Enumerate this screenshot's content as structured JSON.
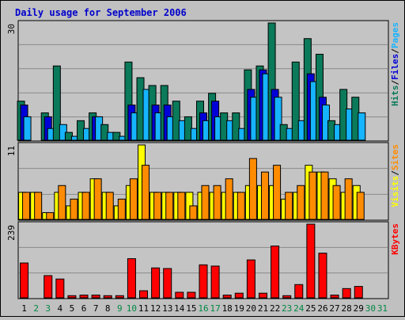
{
  "title": "Daily usage for September 2006",
  "colors": {
    "background": "#c0c0c0",
    "panel": "#c4c4c4",
    "title": "#0000cc",
    "hits": "#0a7a5a",
    "files": "#0000d8",
    "pages": "#16b4ff",
    "visits": "#ffff00",
    "sites": "#ff8c00",
    "kbytes": "#ff0000",
    "weekend_label": "#008844",
    "weekday_label": "#000000"
  },
  "panels": {
    "top": {
      "max_label": "30",
      "legend": [
        {
          "text": "Hits",
          "color": "#0a7a5a"
        },
        {
          "text": "/",
          "color": "#000000"
        },
        {
          "text": "Files",
          "color": "#0000d8"
        },
        {
          "text": "/",
          "color": "#000000"
        },
        {
          "text": "Pages",
          "color": "#16b4ff"
        }
      ]
    },
    "middle": {
      "max_label": "11",
      "legend": [
        {
          "text": "Visits",
          "color": "#ffff00"
        },
        {
          "text": "/",
          "color": "#000000"
        },
        {
          "text": "Sites",
          "color": "#ff8c00"
        }
      ]
    },
    "bottom": {
      "max_label": "239",
      "legend": [
        {
          "text": "KBytes",
          "color": "#ff0000"
        }
      ]
    }
  },
  "chart_data": {
    "type": "bar",
    "title": "Daily usage for September 2006",
    "categories": [
      "1",
      "2",
      "3",
      "4",
      "5",
      "6",
      "7",
      "8",
      "9",
      "10",
      "11",
      "12",
      "13",
      "14",
      "15",
      "16",
      "17",
      "18",
      "19",
      "20",
      "21",
      "22",
      "23",
      "24",
      "25",
      "26",
      "27",
      "28",
      "29",
      "30",
      "31"
    ],
    "weekend_days": [
      "2",
      "3",
      "9",
      "10",
      "16",
      "17",
      "23",
      "24",
      "30",
      "31"
    ],
    "panels": [
      {
        "name": "hits-files-pages",
        "ylim": [
          0,
          30
        ],
        "series": [
          {
            "name": "Hits",
            "values": [
              10,
              0,
              7,
              19,
              2,
              5,
              7,
              4,
              2,
              20,
              16,
              14,
              14,
              10,
              6,
              10,
              12,
              7,
              7,
              18,
              19,
              30,
              4,
              20,
              26,
              22,
              5,
              13,
              11,
              0,
              0
            ]
          },
          {
            "name": "Files",
            "values": [
              9,
              0,
              6,
              0,
              0,
              0,
              6,
              0,
              0,
              9,
              0,
              9,
              9,
              0,
              0,
              7,
              10,
              0,
              0,
              13,
              18,
              13,
              0,
              0,
              17,
              11,
              0,
              0,
              0,
              0,
              0
            ]
          },
          {
            "name": "Pages",
            "values": [
              6,
              0,
              3,
              4,
              1,
              3,
              6,
              2,
              1,
              7,
              13,
              7,
              6,
              5,
              3,
              5,
              6,
              5,
              3,
              11,
              17,
              11,
              3,
              5,
              15,
              9,
              4,
              8,
              7,
              0,
              0
            ]
          }
        ]
      },
      {
        "name": "visits-sites",
        "ylim": [
          0,
          11
        ],
        "series": [
          {
            "name": "Visits",
            "values": [
              4,
              4,
              1,
              4,
              2,
              4,
              6,
              4,
              2,
              5,
              11,
              4,
              4,
              4,
              4,
              4,
              4,
              4,
              4,
              5,
              5,
              5,
              3,
              4,
              8,
              7,
              6,
              4,
              5,
              0,
              0
            ]
          },
          {
            "name": "Sites",
            "values": [
              4,
              4,
              1,
              5,
              3,
              4,
              6,
              4,
              3,
              6,
              8,
              4,
              4,
              4,
              2,
              5,
              5,
              6,
              4,
              9,
              7,
              8,
              4,
              5,
              7,
              7,
              5,
              6,
              4,
              0,
              0
            ]
          }
        ]
      },
      {
        "name": "kbytes",
        "ylim": [
          0,
          239
        ],
        "series": [
          {
            "name": "KBytes",
            "values": [
              113,
              0,
              72,
              61,
              7,
              9,
              9,
              7,
              7,
              127,
              23,
              97,
              95,
              18,
              18,
              107,
              103,
              9,
              15,
              123,
              15,
              168,
              7,
              43,
              239,
              145,
              9,
              30,
              37,
              0,
              0
            ]
          }
        ]
      }
    ]
  }
}
